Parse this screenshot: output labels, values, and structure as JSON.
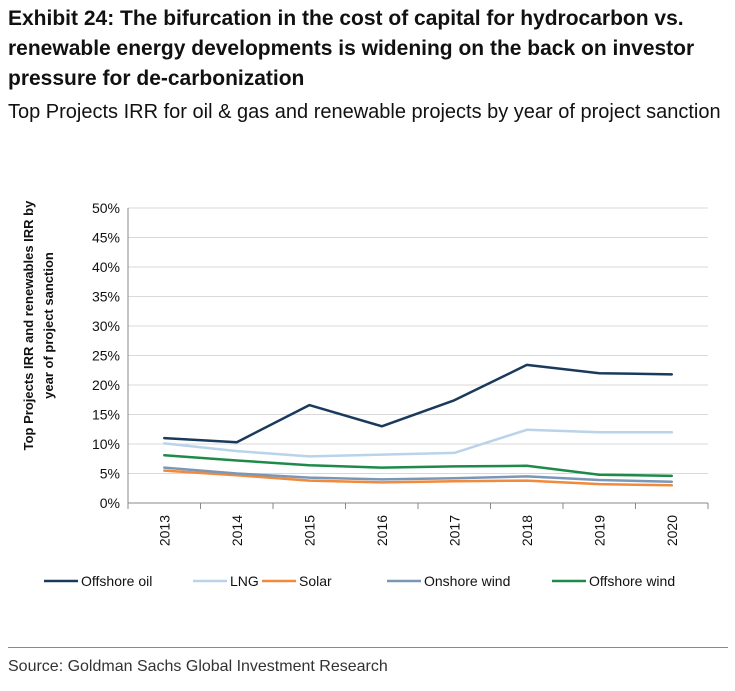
{
  "title": "Exhibit 24: The bifurcation in the cost of capital for hydrocarbon vs. renewable energy developments is widening on the back on investor pressure for de-carbonization",
  "subtitle": "Top Projects IRR for oil & gas and renewable projects by year of project sanction",
  "source": "Source: Goldman Sachs Global Investment Research",
  "chart_data": {
    "type": "line",
    "x": [
      "2013",
      "2014",
      "2015",
      "2016",
      "2017",
      "2018",
      "2019",
      "2020"
    ],
    "ylabel_lines": [
      "Top Projects IRR and renewables IRR by",
      "year of project sanction"
    ],
    "xlabel": "",
    "ylim": [
      0,
      50
    ],
    "yticks": [
      "0%",
      "5%",
      "10%",
      "15%",
      "20%",
      "25%",
      "30%",
      "35%",
      "40%",
      "45%",
      "50%"
    ],
    "grid": "horizontal",
    "legend_position": "bottom",
    "series": [
      {
        "name": "Offshore oil",
        "color": "#1a3a5c",
        "values": [
          11.0,
          10.3,
          16.6,
          13.0,
          17.4,
          23.4,
          22.0,
          21.8
        ]
      },
      {
        "name": "LNG",
        "color": "#b8d3ea",
        "values": [
          10.1,
          8.8,
          7.9,
          8.2,
          8.5,
          12.4,
          12.0,
          12.0
        ]
      },
      {
        "name": "Solar",
        "color": "#f08a3c",
        "values": [
          5.5,
          4.7,
          3.8,
          3.5,
          3.7,
          3.8,
          3.2,
          3.0
        ]
      },
      {
        "name": "Onshore wind",
        "color": "#7b97b8",
        "values": [
          6.0,
          5.0,
          4.3,
          4.0,
          4.2,
          4.5,
          3.9,
          3.6
        ]
      },
      {
        "name": "Offshore wind",
        "color": "#1e8a4a",
        "values": [
          8.1,
          7.2,
          6.4,
          6.0,
          6.2,
          6.3,
          4.8,
          4.6
        ]
      }
    ]
  }
}
